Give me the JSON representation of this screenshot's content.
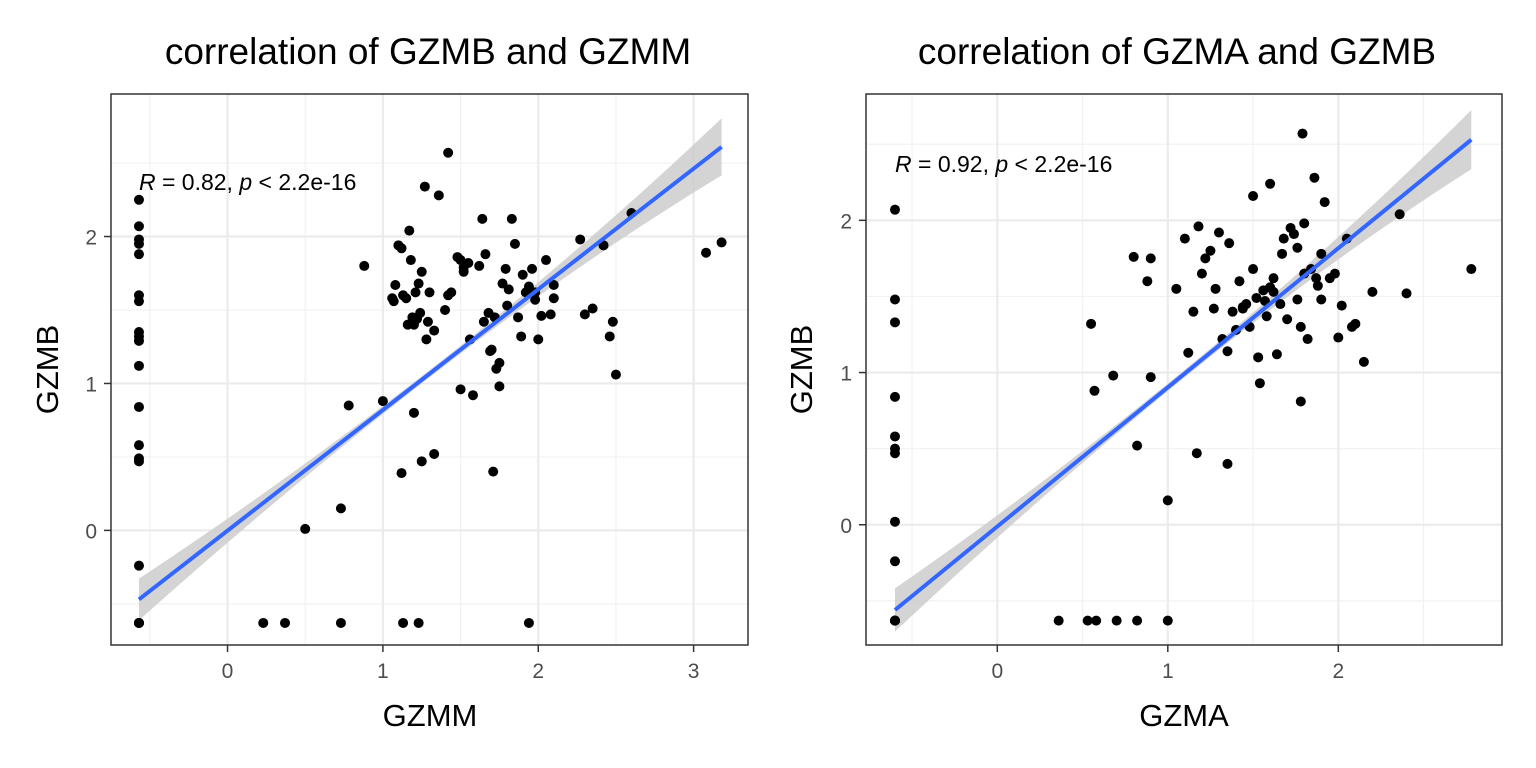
{
  "chart_data": [
    {
      "type": "scatter",
      "title": "correlation of GZMB and GZMM",
      "xlabel": "GZMM",
      "ylabel": "GZMB",
      "xlim": [
        -0.75,
        3.35
      ],
      "ylim": [
        -0.78,
        2.97
      ],
      "xticks": [
        0,
        1,
        2,
        3
      ],
      "yticks": [
        0,
        1,
        2
      ],
      "grid": true,
      "annotation": {
        "r_label": "R",
        "r_text": " = 0.82, ",
        "p_label": "p",
        "p_text": " < 2.2e-16",
        "x": -0.57,
        "y": 2.37
      },
      "fit_line": {
        "color": "#3366FF",
        "x": [
          -0.57,
          3.18
        ],
        "y": [
          -0.47,
          2.61
        ],
        "band_start": [
          -0.43,
          -0.52
        ],
        "band_end": [
          2.82,
          2.4
        ],
        "band_color": "#cccccc"
      },
      "point_color": "#000000",
      "points": {
        "x": [
          -0.57,
          -0.57,
          -0.57,
          -0.57,
          -0.57,
          -0.57,
          -0.57,
          -0.57,
          -0.57,
          -0.57,
          -0.57,
          -0.57,
          -0.57,
          -0.57,
          -0.57,
          -0.57,
          -0.57,
          -0.57,
          -0.57,
          0.23,
          0.37,
          0.73,
          1.13,
          1.23,
          1.94,
          0.5,
          0.73,
          0.78,
          0.88,
          1.0,
          1.06,
          1.08,
          1.1,
          1.12,
          1.13,
          1.15,
          1.17,
          1.18,
          1.19,
          1.2,
          1.21,
          1.22,
          1.23,
          1.24,
          1.25,
          1.27,
          1.29,
          1.3,
          1.33,
          1.36,
          1.4,
          1.42,
          1.44,
          1.48,
          1.5,
          1.52,
          1.55,
          1.58,
          1.62,
          1.64,
          1.66,
          1.68,
          1.7,
          1.72,
          1.73,
          1.75,
          1.77,
          1.79,
          1.81,
          1.83,
          1.85,
          1.87,
          1.89,
          1.9,
          1.92,
          1.94,
          1.96,
          1.98,
          2.0,
          2.02,
          2.05,
          2.08,
          2.1,
          2.27,
          2.3,
          2.35,
          2.42,
          2.46,
          2.48,
          2.5,
          2.6,
          3.08,
          3.18,
          1.12,
          1.2,
          1.25,
          1.33,
          1.5,
          1.56,
          1.71,
          1.75,
          1.42,
          1.28,
          1.07,
          1.16,
          1.52,
          1.69,
          1.65,
          1.8,
          1.98,
          2.1
        ],
        "y": [
          2.25,
          2.07,
          1.98,
          1.95,
          1.88,
          1.6,
          1.56,
          1.35,
          1.32,
          1.29,
          1.12,
          0.84,
          0.58,
          0.49,
          0.47,
          -0.24,
          -0.63,
          -0.63,
          -0.63,
          -0.63,
          -0.63,
          -0.63,
          -0.63,
          -0.63,
          -0.63,
          0.01,
          0.15,
          0.85,
          1.8,
          0.88,
          1.58,
          1.67,
          1.94,
          1.92,
          1.6,
          1.58,
          2.04,
          1.84,
          1.45,
          1.4,
          1.62,
          1.44,
          1.68,
          1.48,
          1.76,
          2.34,
          1.42,
          1.62,
          1.36,
          2.28,
          1.5,
          2.57,
          1.62,
          1.86,
          1.84,
          1.76,
          1.82,
          0.92,
          1.8,
          2.12,
          1.88,
          1.48,
          1.23,
          1.45,
          1.1,
          1.14,
          1.68,
          1.78,
          1.64,
          2.12,
          1.95,
          1.45,
          1.32,
          1.74,
          1.62,
          1.66,
          1.78,
          1.62,
          1.3,
          1.46,
          1.84,
          1.47,
          1.58,
          1.98,
          1.47,
          1.51,
          1.94,
          1.32,
          1.42,
          1.06,
          2.16,
          1.89,
          1.96,
          0.39,
          0.8,
          0.47,
          0.52,
          0.96,
          1.3,
          0.4,
          0.98,
          1.6,
          1.3,
          1.56,
          1.4,
          1.79,
          1.22,
          1.42,
          1.53,
          1.57,
          1.67
        ]
      }
    },
    {
      "type": "scatter",
      "title": "correlation of GZMA and GZMB",
      "xlabel": "GZMA",
      "ylabel": "GZMB",
      "xlim": [
        -0.77,
        2.96
      ],
      "ylim": [
        -0.79,
        2.83
      ],
      "xticks": [
        0,
        1,
        2
      ],
      "yticks": [
        0,
        1,
        2
      ],
      "grid": true,
      "annotation": {
        "r_label": "R",
        "r_text": " = 0.92, ",
        "p_label": "p",
        "p_text": " < 2.2e-16",
        "x": -0.6,
        "y": 2.37
      },
      "fit_line": {
        "color": "#3366FF",
        "x": [
          -0.6,
          2.78
        ],
        "y": [
          -0.56,
          2.53
        ],
        "band_start": [
          -0.55,
          -0.6
        ],
        "band_end": [
          2.63,
          2.47
        ],
        "band_color": "#cccccc"
      },
      "point_color": "#000000",
      "points": {
        "x": [
          -0.6,
          -0.6,
          -0.6,
          -0.6,
          -0.6,
          -0.6,
          -0.6,
          -0.6,
          -0.6,
          -0.6,
          -0.6,
          -0.6,
          -0.6,
          -0.6,
          0.36,
          0.53,
          0.58,
          0.7,
          0.82,
          1.0,
          0.55,
          0.57,
          0.68,
          0.82,
          0.9,
          0.8,
          0.88,
          0.9,
          1.0,
          1.05,
          1.1,
          1.12,
          1.15,
          1.18,
          1.2,
          1.22,
          1.25,
          1.28,
          1.3,
          1.32,
          1.35,
          1.38,
          1.4,
          1.42,
          1.44,
          1.46,
          1.48,
          1.5,
          1.52,
          1.54,
          1.56,
          1.58,
          1.6,
          1.62,
          1.64,
          1.66,
          1.68,
          1.7,
          1.72,
          1.74,
          1.76,
          1.78,
          1.8,
          1.82,
          1.84,
          1.86,
          1.88,
          1.9,
          1.92,
          1.95,
          1.98,
          2.0,
          2.02,
          2.05,
          2.08,
          2.1,
          2.15,
          2.2,
          2.36,
          2.4,
          2.78,
          1.17,
          1.35,
          1.53,
          1.78,
          1.79,
          1.62,
          1.9,
          1.76,
          1.36,
          1.6,
          1.8,
          1.44,
          1.5,
          1.27,
          1.57,
          1.67,
          1.87
        ],
        "y": [
          2.07,
          1.48,
          1.33,
          0.84,
          0.58,
          0.5,
          0.47,
          0.02,
          -0.24,
          -0.63,
          -0.63,
          -0.63,
          -0.63,
          -0.63,
          -0.63,
          -0.63,
          -0.63,
          -0.63,
          -0.63,
          -0.63,
          1.32,
          0.88,
          0.98,
          0.52,
          0.97,
          1.76,
          1.6,
          1.75,
          0.16,
          1.55,
          1.88,
          1.13,
          1.4,
          1.96,
          1.65,
          1.75,
          1.8,
          1.55,
          1.92,
          1.22,
          1.14,
          1.4,
          1.28,
          1.6,
          1.42,
          1.45,
          1.3,
          2.16,
          1.49,
          0.93,
          1.54,
          1.37,
          2.24,
          1.62,
          1.12,
          1.45,
          1.88,
          1.35,
          1.95,
          1.91,
          1.48,
          1.3,
          1.98,
          1.22,
          1.68,
          2.28,
          1.57,
          1.78,
          2.12,
          1.62,
          1.65,
          1.23,
          1.44,
          1.88,
          1.3,
          1.32,
          1.07,
          1.53,
          2.04,
          1.52,
          1.68,
          0.47,
          0.4,
          1.1,
          0.81,
          2.57,
          1.53,
          1.48,
          1.82,
          1.85,
          1.56,
          1.65,
          1.43,
          1.68,
          1.42,
          1.47,
          1.78,
          1.62
        ]
      }
    }
  ]
}
